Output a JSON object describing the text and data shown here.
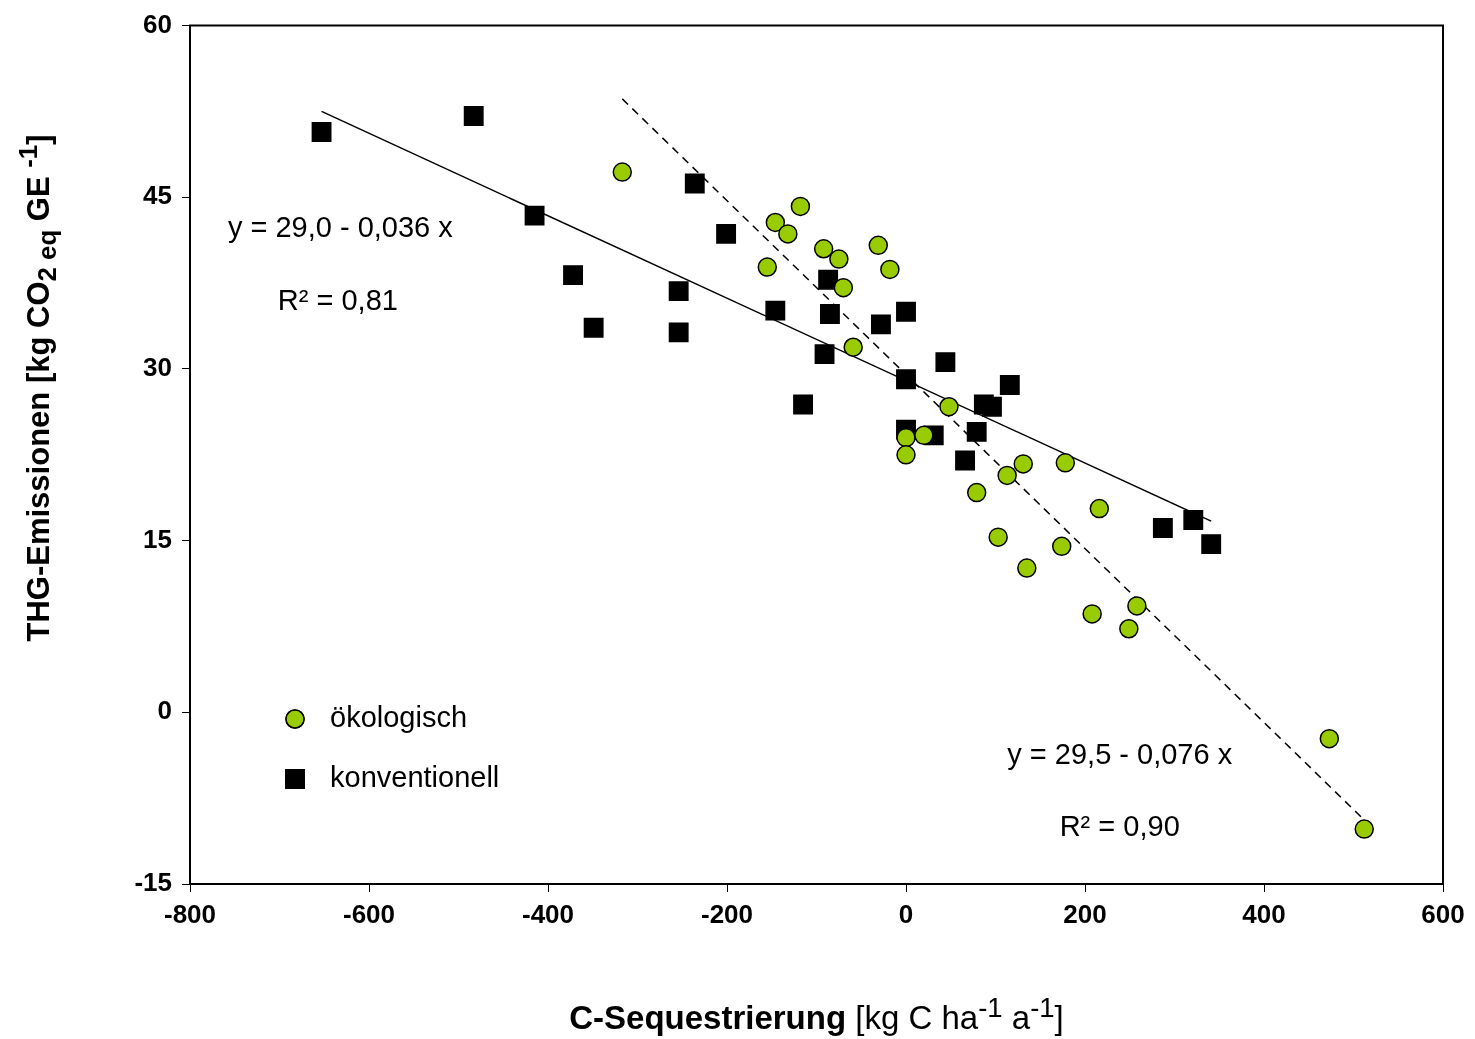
{
  "chart_data": {
    "type": "scatter",
    "xlabel": "C-Sequestrierung  [kg C ha$^{-1}$ a$^{-1}$]",
    "ylabel": "THG-Emissionen [kg CO$_{2 eq}$ GE $^{-1}$]",
    "xlim": [
      -800,
      600
    ],
    "xticks": [
      -800,
      -600,
      -400,
      -200,
      0,
      200,
      400,
      600
    ],
    "ylim": [
      -15,
      60
    ],
    "yticks": [
      -15,
      0,
      15,
      30,
      45,
      60
    ],
    "grid": false,
    "legend": "bottom left",
    "series": [
      {
        "name": "ökologisch",
        "color": "#99cc00",
        "marker": "circle",
        "x": [
          -317,
          -146,
          -118,
          -132,
          -155,
          -92,
          -75,
          -70,
          -31,
          -18,
          -59,
          48,
          0,
          20,
          0,
          79,
          113,
          131,
          178,
          103,
          135,
          174,
          216,
          208,
          258,
          249,
          473,
          512
        ],
        "values": [
          47.2,
          42.8,
          44.2,
          41.8,
          38.9,
          40.5,
          39.6,
          37.1,
          40.8,
          38.7,
          31.9,
          26.7,
          24.0,
          24.2,
          22.5,
          19.2,
          20.7,
          21.7,
          21.8,
          15.3,
          12.6,
          14.5,
          17.8,
          8.6,
          9.3,
          7.3,
          -2.3,
          -10.2
        ]
      },
      {
        "name": "konventionell",
        "color": "#000000",
        "marker": "square",
        "x": [
          -653,
          -483,
          -415,
          -372,
          -349,
          -254,
          -254,
          -236,
          -201,
          -146,
          -115,
          -91,
          -87,
          -85,
          -28,
          0,
          44,
          0,
          116,
          87,
          96,
          0,
          31,
          79,
          66,
          287,
          321,
          341
        ],
        "values": [
          50.7,
          52.1,
          43.4,
          38.2,
          33.6,
          36.8,
          33.2,
          46.2,
          41.8,
          35.1,
          26.9,
          31.3,
          37.8,
          34.8,
          33.9,
          35.0,
          30.6,
          29.1,
          28.6,
          26.9,
          26.7,
          24.7,
          24.2,
          24.5,
          22.0,
          16.1,
          16.8,
          14.7
        ]
      },
      {
        "type": "line",
        "color": "#000000",
        "marker": "none",
        "line_style": "solid",
        "x": [
          -653,
          341
        ],
        "values": [
          52.5,
          16.7
        ]
      },
      {
        "type": "line",
        "color": "#000000",
        "marker": "none",
        "line_style": "dashed",
        "x": [
          -317,
          512
        ],
        "values": [
          53.6,
          -9.4
        ]
      }
    ],
    "annotations": [
      "y = 29,0 - 0,036 x",
      "R² = 0,81",
      "y = 29,5 - 0,076 x",
      "R² = 0,90"
    ]
  }
}
